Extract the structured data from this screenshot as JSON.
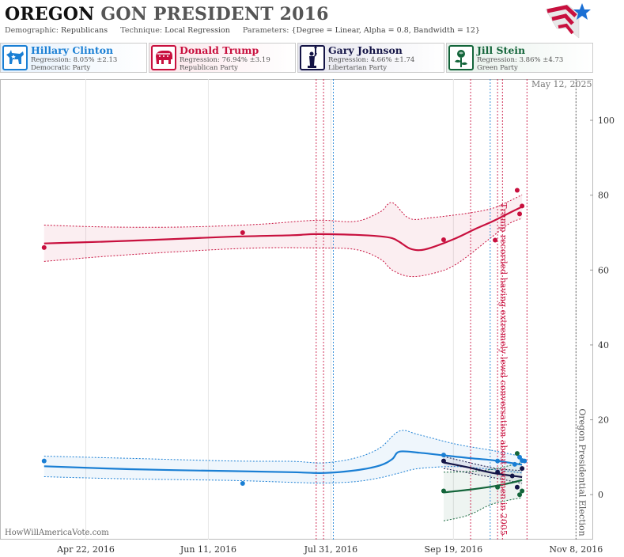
{
  "header": {
    "title_state": "OREGON",
    "title_rest": "GON PRESIDENT 2016",
    "demographic_label": "Demographic:",
    "demographic_value": "Republicans",
    "technique_label": "Technique:",
    "technique_value": "Local Regression",
    "parameters_label": "Parameters:",
    "parameters_value": "{Degree = Linear, Alpha = 0.8, Bandwidth = 12}"
  },
  "candidates": [
    {
      "name": "Hillary Clinton",
      "regression": "Regression: 8.05% ±2.13",
      "party": "Democratic Party",
      "color": "#1a7fd4",
      "icon": "donkey-icon"
    },
    {
      "name": "Donald Trump",
      "regression": "Regression: 76.94% ±3.19",
      "party": "Republican Party",
      "color": "#c8103e",
      "icon": "elephant-icon"
    },
    {
      "name": "Gary Johnson",
      "regression": "Regression: 4.66% ±1.74",
      "party": "Libertarian Party",
      "color": "#141446",
      "icon": "liberty-statue-icon"
    },
    {
      "name": "Jill Stein",
      "regression": "Regression: 3.86% ±4.73",
      "party": "Green Party",
      "color": "#13653a",
      "icon": "rose-icon"
    }
  ],
  "date_stamp": "May 12, 2025",
  "watermark": "HowWillAmericaVote.com",
  "chart_data": {
    "type": "line",
    "x_type": "date",
    "xlim": [
      "2016-03-18",
      "2016-11-15"
    ],
    "ylim": [
      -12,
      111
    ],
    "y_ticks": [
      0,
      20,
      40,
      60,
      80,
      100
    ],
    "x_ticks": [
      {
        "date": "2016-04-22",
        "label": "Apr 22, 2016"
      },
      {
        "date": "2016-06-11",
        "label": "Jun 11, 2016"
      },
      {
        "date": "2016-07-31",
        "label": "Jul 31, 2016"
      },
      {
        "date": "2016-09-19",
        "label": "Sep 19, 2016"
      },
      {
        "date": "2016-11-08",
        "label": "Nov 8, 2016"
      }
    ],
    "grid": "vertical",
    "legend_placement": "top",
    "event_lines": [
      {
        "date": "2016-07-25",
        "color": "#c8103e"
      },
      {
        "date": "2016-07-28",
        "color": "#c8103e"
      },
      {
        "date": "2016-08-01",
        "color": "#1a7fd4"
      },
      {
        "date": "2016-09-26",
        "color": "#c8103e"
      },
      {
        "date": "2016-10-04",
        "color": "#1a7fd4"
      },
      {
        "date": "2016-10-07",
        "color": "#c8103e"
      },
      {
        "date": "2016-10-09",
        "color": "#c8103e"
      },
      {
        "date": "2016-10-19",
        "color": "#c8103e"
      },
      {
        "date": "2016-11-08",
        "color": "#555555"
      }
    ],
    "annotations": [
      {
        "text": "Trump recorded having extremely lewd conversation about women in 2005",
        "date": "2016-10-07",
        "y": 78,
        "color": "#c8103e"
      },
      {
        "text": "Oregon Presidential Election",
        "date": "2016-11-08",
        "y": 23,
        "color": "#555555"
      }
    ],
    "series": [
      {
        "name": "Donald Trump",
        "color": "#c8103e",
        "line": [
          [
            "2016-04-05",
            67.1
          ],
          [
            "2016-04-30",
            67.6
          ],
          [
            "2016-05-25",
            68.2
          ],
          [
            "2016-06-20",
            68.9
          ],
          [
            "2016-07-15",
            69.3
          ],
          [
            "2016-07-25",
            69.6
          ],
          [
            "2016-08-10",
            69.4
          ],
          [
            "2016-08-20",
            69.0
          ],
          [
            "2016-08-25",
            68.5
          ],
          [
            "2016-08-28",
            67.5
          ],
          [
            "2016-09-01",
            65.8
          ],
          [
            "2016-09-05",
            65.3
          ],
          [
            "2016-09-10",
            66.0
          ],
          [
            "2016-09-20",
            68.5
          ],
          [
            "2016-09-28",
            71.0
          ],
          [
            "2016-10-05",
            73.0
          ],
          [
            "2016-10-12",
            75.3
          ],
          [
            "2016-10-17",
            76.9
          ]
        ],
        "upper": [
          [
            "2016-04-05",
            72.0
          ],
          [
            "2016-05-01",
            71.5
          ],
          [
            "2016-06-01",
            71.5
          ],
          [
            "2016-07-01",
            72.2
          ],
          [
            "2016-07-25",
            73.3
          ],
          [
            "2016-08-10",
            73.0
          ],
          [
            "2016-08-20",
            75.5
          ],
          [
            "2016-08-25",
            78.0
          ],
          [
            "2016-09-01",
            73.8
          ],
          [
            "2016-09-10",
            74.0
          ],
          [
            "2016-09-25",
            75.2
          ],
          [
            "2016-10-05",
            76.5
          ],
          [
            "2016-10-12",
            78.5
          ],
          [
            "2016-10-17",
            80.1
          ]
        ],
        "lower": [
          [
            "2016-04-05",
            62.3
          ],
          [
            "2016-05-01",
            63.7
          ],
          [
            "2016-06-01",
            65.0
          ],
          [
            "2016-07-01",
            65.9
          ],
          [
            "2016-07-25",
            65.9
          ],
          [
            "2016-08-10",
            65.5
          ],
          [
            "2016-08-20",
            63.0
          ],
          [
            "2016-08-25",
            60.0
          ],
          [
            "2016-09-01",
            58.3
          ],
          [
            "2016-09-10",
            59.0
          ],
          [
            "2016-09-20",
            61.5
          ],
          [
            "2016-10-05",
            69.0
          ],
          [
            "2016-10-12",
            72.5
          ],
          [
            "2016-10-17",
            73.8
          ]
        ],
        "points": [
          [
            "2016-04-05",
            66.0
          ],
          [
            "2016-06-25",
            70.0
          ],
          [
            "2016-09-15",
            68.1
          ],
          [
            "2016-10-06",
            68.0
          ],
          [
            "2016-10-15",
            81.3
          ],
          [
            "2016-10-16",
            75.0
          ],
          [
            "2016-10-17",
            77.1
          ]
        ]
      },
      {
        "name": "Hillary Clinton",
        "color": "#1a7fd4",
        "line": [
          [
            "2016-04-05",
            7.6
          ],
          [
            "2016-05-10",
            6.8
          ],
          [
            "2016-06-20",
            6.3
          ],
          [
            "2016-07-15",
            6.0
          ],
          [
            "2016-07-28",
            5.8
          ],
          [
            "2016-08-10",
            6.5
          ],
          [
            "2016-08-20",
            7.8
          ],
          [
            "2016-08-25",
            9.5
          ],
          [
            "2016-08-28",
            11.5
          ],
          [
            "2016-09-05",
            11.2
          ],
          [
            "2016-09-15",
            10.5
          ],
          [
            "2016-09-25",
            9.8
          ],
          [
            "2016-10-05",
            9.2
          ],
          [
            "2016-10-17",
            8.0
          ]
        ],
        "upper": [
          [
            "2016-04-05",
            10.3
          ],
          [
            "2016-05-10",
            9.7
          ],
          [
            "2016-06-20",
            9.0
          ],
          [
            "2016-07-15",
            8.9
          ],
          [
            "2016-07-28",
            8.5
          ],
          [
            "2016-08-10",
            9.8
          ],
          [
            "2016-08-20",
            12.5
          ],
          [
            "2016-08-28",
            17.0
          ],
          [
            "2016-09-05",
            16.0
          ],
          [
            "2016-09-20",
            13.5
          ],
          [
            "2016-10-05",
            11.8
          ],
          [
            "2016-10-17",
            10.2
          ]
        ],
        "lower": [
          [
            "2016-04-05",
            4.8
          ],
          [
            "2016-05-10",
            4.2
          ],
          [
            "2016-06-20",
            3.8
          ],
          [
            "2016-07-15",
            3.3
          ],
          [
            "2016-07-28",
            3.1
          ],
          [
            "2016-08-10",
            3.5
          ],
          [
            "2016-08-20",
            4.5
          ],
          [
            "2016-08-28",
            5.8
          ],
          [
            "2016-09-05",
            7.0
          ],
          [
            "2016-09-20",
            7.5
          ],
          [
            "2016-10-05",
            6.7
          ],
          [
            "2016-10-17",
            5.8
          ]
        ],
        "points": [
          [
            "2016-04-05",
            9.0
          ],
          [
            "2016-06-25",
            3.0
          ],
          [
            "2016-09-15",
            10.6
          ],
          [
            "2016-10-07",
            9.0
          ],
          [
            "2016-10-14",
            8.1
          ],
          [
            "2016-10-16",
            10.0
          ],
          [
            "2016-10-17",
            9.1
          ],
          [
            "2016-10-18",
            9.0
          ]
        ]
      },
      {
        "name": "Gary Johnson",
        "color": "#141446",
        "line": [
          [
            "2016-09-15",
            8.6
          ],
          [
            "2016-09-25",
            7.3
          ],
          [
            "2016-10-05",
            5.8
          ],
          [
            "2016-10-17",
            4.7
          ]
        ],
        "upper": [
          [
            "2016-09-15",
            10.2
          ],
          [
            "2016-10-05",
            7.2
          ],
          [
            "2016-10-17",
            6.4
          ]
        ],
        "lower": [
          [
            "2016-09-15",
            7.0
          ],
          [
            "2016-10-05",
            4.6
          ],
          [
            "2016-10-17",
            3.0
          ]
        ],
        "points": [
          [
            "2016-09-15",
            9.0
          ],
          [
            "2016-10-07",
            6.0
          ],
          [
            "2016-10-13",
            5.0
          ],
          [
            "2016-10-15",
            2.0
          ],
          [
            "2016-10-17",
            7.0
          ]
        ]
      },
      {
        "name": "Jill Stein",
        "color": "#13653a",
        "line": [
          [
            "2016-09-15",
            0.6
          ],
          [
            "2016-09-25",
            1.3
          ],
          [
            "2016-10-05",
            2.2
          ],
          [
            "2016-10-12",
            3.1
          ],
          [
            "2016-10-17",
            3.9
          ]
        ],
        "upper": [
          [
            "2016-09-15",
            6.0
          ],
          [
            "2016-09-25",
            6.2
          ],
          [
            "2016-10-05",
            6.8
          ],
          [
            "2016-10-17",
            8.6
          ]
        ],
        "lower": [
          [
            "2016-09-15",
            -7.0
          ],
          [
            "2016-09-25",
            -5.5
          ],
          [
            "2016-10-05",
            -2.5
          ],
          [
            "2016-10-17",
            -0.8
          ]
        ],
        "points": [
          [
            "2016-09-15",
            1.0
          ],
          [
            "2016-10-07",
            2.0
          ],
          [
            "2016-10-15",
            11.0
          ],
          [
            "2016-10-16",
            0.0
          ],
          [
            "2016-10-17",
            1.0
          ]
        ]
      }
    ]
  }
}
